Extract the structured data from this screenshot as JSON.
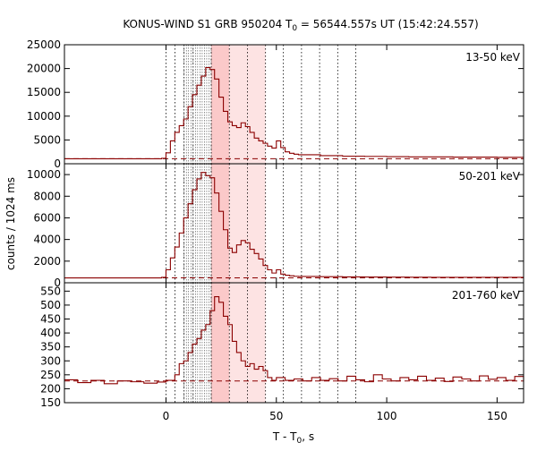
{
  "chart_data": {
    "type": "line",
    "title_main": "KONUS-WIND S1 GRB 950204 T",
    "title_sub": "0",
    "title_rest": " = 56544.557s UT (15:42:24.557)",
    "xlabel_main": "T - T",
    "xlabel_sub": "0",
    "xlabel_rest": ", s",
    "ylabel": "counts / 1024 ms",
    "xlim": [
      -46,
      162
    ],
    "xticks": [
      0,
      50,
      100,
      150
    ],
    "xtick_labels": [
      "0",
      "50",
      "100",
      "150"
    ],
    "shaded_intervals": [
      [
        20.5,
        28.7
      ],
      [
        28.7,
        45.1
      ]
    ],
    "dotted_lines": [
      0,
      4.1,
      8.2,
      12.3,
      20.5,
      28.7,
      36.9,
      45.1,
      53.2,
      61.4,
      69.6,
      77.8,
      86.0
    ],
    "hatched_range": [
      8.2,
      20.5
    ],
    "colors": {
      "line": "#8b0000",
      "shade_strong": "#fbc9c9",
      "shade_light": "#fde3e3",
      "grid": "#000000"
    },
    "panels": [
      {
        "label": "13-50 keV",
        "ylim": [
          0,
          25000
        ],
        "yticks": [
          0,
          5000,
          10000,
          15000,
          20000,
          25000
        ],
        "ytick_labels": [
          "0",
          "5000",
          "10000",
          "15000",
          "20000",
          "25000"
        ],
        "background": 1050,
        "x": [
          -46,
          -2,
          0,
          2,
          4,
          6,
          8,
          10,
          12,
          14,
          16,
          18,
          20,
          22,
          24,
          26,
          28,
          30,
          32,
          34,
          36,
          38,
          40,
          42,
          44,
          46,
          48,
          50,
          52,
          54,
          56,
          58,
          60,
          70,
          80,
          90,
          100,
          110,
          120,
          130,
          140,
          150,
          162
        ],
        "y": [
          1050,
          1150,
          2300,
          4800,
          6600,
          8000,
          9400,
          12000,
          14500,
          16500,
          18400,
          20200,
          19800,
          17800,
          14000,
          11000,
          8800,
          8000,
          7600,
          8600,
          7800,
          6600,
          5400,
          4800,
          4300,
          3700,
          3300,
          4800,
          3400,
          2500,
          2200,
          2000,
          1900,
          1700,
          1600,
          1550,
          1500,
          1450,
          1450,
          1400,
          1400,
          1350,
          1300
        ]
      },
      {
        "label": "50-201 keV",
        "ylim": [
          0,
          11000
        ],
        "yticks": [
          0,
          2000,
          4000,
          6000,
          8000,
          10000
        ],
        "ytick_labels": [
          "0",
          "2000",
          "4000",
          "6000",
          "8000",
          "10000"
        ],
        "background": 450,
        "x": [
          -46,
          -2,
          0,
          2,
          4,
          6,
          8,
          10,
          12,
          14,
          16,
          18,
          20,
          22,
          24,
          26,
          28,
          30,
          32,
          34,
          36,
          38,
          40,
          42,
          44,
          46,
          48,
          50,
          52,
          54,
          56,
          58,
          60,
          70,
          80,
          90,
          100,
          110,
          120,
          130,
          140,
          150,
          162
        ],
        "y": [
          450,
          500,
          1200,
          2300,
          3300,
          4600,
          6000,
          7300,
          8600,
          9600,
          10200,
          9900,
          9700,
          8300,
          6600,
          4900,
          3200,
          2800,
          3500,
          3900,
          3700,
          3100,
          2700,
          2200,
          1600,
          1200,
          900,
          1200,
          800,
          700,
          650,
          600,
          580,
          560,
          540,
          530,
          520,
          510,
          500,
          500,
          500,
          500,
          500
        ]
      },
      {
        "label": "201-760 keV",
        "ylim": [
          150,
          580
        ],
        "yticks": [
          150,
          200,
          250,
          300,
          350,
          400,
          450,
          500,
          550
        ],
        "ytick_labels": [
          "150",
          "200",
          "250",
          "300",
          "350",
          "400",
          "450",
          "500",
          "550"
        ],
        "background": 228,
        "x": [
          -46,
          -40,
          -34,
          -28,
          -22,
          -16,
          -10,
          -4,
          0,
          4,
          6,
          8,
          10,
          12,
          14,
          16,
          18,
          20,
          22,
          24,
          26,
          28,
          30,
          32,
          34,
          36,
          38,
          40,
          42,
          44,
          46,
          48,
          50,
          54,
          58,
          62,
          66,
          70,
          74,
          78,
          82,
          86,
          90,
          94,
          98,
          102,
          106,
          110,
          114,
          118,
          122,
          126,
          130,
          134,
          138,
          142,
          146,
          150,
          154,
          158,
          162
        ],
        "y": [
          232,
          222,
          230,
          218,
          228,
          225,
          220,
          224,
          230,
          250,
          290,
          300,
          330,
          360,
          380,
          410,
          430,
          480,
          530,
          510,
          460,
          430,
          370,
          330,
          300,
          280,
          290,
          270,
          280,
          265,
          240,
          230,
          240,
          230,
          235,
          228,
          240,
          230,
          236,
          228,
          245,
          232,
          225,
          250,
          235,
          228,
          240,
          232,
          245,
          230,
          238,
          226,
          242,
          235,
          228,
          246,
          234,
          240,
          230,
          244,
          225
        ]
      }
    ]
  }
}
